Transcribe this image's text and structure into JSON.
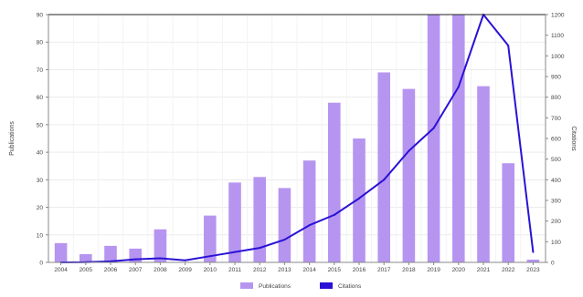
{
  "chart_data": {
    "type": "bar",
    "categories": [
      "2004",
      "2005",
      "2006",
      "2007",
      "2008",
      "2009",
      "2010",
      "2011",
      "2012",
      "2013",
      "2014",
      "2015",
      "2016",
      "2017",
      "2018",
      "2019",
      "2020",
      "2021",
      "2022",
      "2023"
    ],
    "series": [
      {
        "name": "Publications",
        "type": "bar",
        "axis": "left",
        "color": "#b695f0",
        "values": [
          7,
          3,
          6,
          5,
          12,
          0,
          17,
          29,
          31,
          27,
          37,
          58,
          45,
          69,
          63,
          92,
          92,
          64,
          36,
          1
        ]
      },
      {
        "name": "Citations",
        "type": "line",
        "axis": "right",
        "color": "#2a12d6",
        "values": [
          0,
          1,
          5,
          15,
          20,
          10,
          30,
          50,
          70,
          110,
          180,
          230,
          310,
          400,
          540,
          650,
          850,
          1200,
          1050,
          50
        ]
      }
    ],
    "ylabel": "Publications",
    "y2label": "Citations",
    "ylim": [
      0,
      90
    ],
    "y2lim": [
      0,
      1200
    ],
    "yticks": [
      0,
      10,
      20,
      30,
      40,
      50,
      60,
      70,
      80,
      90
    ],
    "y2ticks": [
      0,
      100,
      200,
      300,
      400,
      500,
      600,
      700,
      800,
      900,
      1000,
      1100,
      1200
    ],
    "grid": true,
    "legend_position": "bottom"
  }
}
